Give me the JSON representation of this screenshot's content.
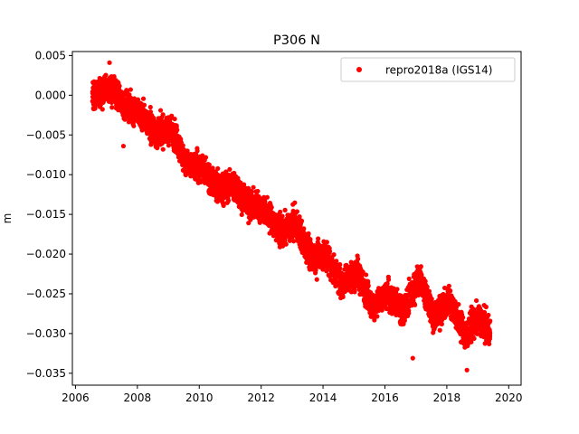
{
  "chart_data": {
    "type": "scatter",
    "title": "P306 N",
    "xlabel": "",
    "ylabel": "m",
    "xlim": [
      2005.9,
      2020.4
    ],
    "ylim": [
      -0.0365,
      0.0055
    ],
    "xticks": [
      2006,
      2008,
      2010,
      2012,
      2014,
      2016,
      2018,
      2020
    ],
    "xtick_labels": [
      "2006",
      "2008",
      "2010",
      "2012",
      "2014",
      "2016",
      "2018",
      "2020"
    ],
    "yticks": [
      0.005,
      0.0,
      -0.005,
      -0.01,
      -0.015,
      -0.02,
      -0.025,
      -0.03,
      -0.035
    ],
    "ytick_labels": [
      "0.005",
      "0.000",
      "−0.005",
      "−0.010",
      "−0.015",
      "−0.020",
      "−0.025",
      "−0.030",
      "−0.035"
    ],
    "grid": false,
    "legend": {
      "position": "top-right"
    },
    "series": [
      {
        "name": "repro2018a (IGS14)",
        "color": "#ff0000",
        "marker": "circle",
        "x_range": [
          2006.55,
          2019.4
        ],
        "trend_points": [
          {
            "x": 2006.6,
            "y": -0.0002
          },
          {
            "x": 2007.1,
            "y": 0.0012
          },
          {
            "x": 2007.6,
            "y": -0.0013
          },
          {
            "x": 2008.1,
            "y": -0.0023
          },
          {
            "x": 2008.6,
            "y": -0.0047
          },
          {
            "x": 2009.1,
            "y": -0.0042
          },
          {
            "x": 2009.6,
            "y": -0.0088
          },
          {
            "x": 2010.1,
            "y": -0.0092
          },
          {
            "x": 2010.6,
            "y": -0.0118
          },
          {
            "x": 2011.1,
            "y": -0.0113
          },
          {
            "x": 2011.6,
            "y": -0.0137
          },
          {
            "x": 2012.1,
            "y": -0.0142
          },
          {
            "x": 2012.6,
            "y": -0.0172
          },
          {
            "x": 2013.1,
            "y": -0.0162
          },
          {
            "x": 2013.6,
            "y": -0.0201
          },
          {
            "x": 2014.1,
            "y": -0.0201
          },
          {
            "x": 2014.6,
            "y": -0.0238
          },
          {
            "x": 2015.1,
            "y": -0.0222
          },
          {
            "x": 2015.6,
            "y": -0.0267
          },
          {
            "x": 2016.1,
            "y": -0.0252
          },
          {
            "x": 2016.6,
            "y": -0.0272
          },
          {
            "x": 2017.1,
            "y": -0.023
          },
          {
            "x": 2017.6,
            "y": -0.0279
          },
          {
            "x": 2018.1,
            "y": -0.0258
          },
          {
            "x": 2018.6,
            "y": -0.0302
          },
          {
            "x": 2019.0,
            "y": -0.028
          },
          {
            "x": 2019.4,
            "y": -0.03
          }
        ],
        "outliers": [
          {
            "x": 2007.55,
            "y": -0.0064
          },
          {
            "x": 2018.65,
            "y": -0.0346
          },
          {
            "x": 2007.1,
            "y": 0.0041
          },
          {
            "x": 2016.9,
            "y": -0.0331
          },
          {
            "x": 2013.8,
            "y": -0.0232
          }
        ]
      }
    ]
  }
}
